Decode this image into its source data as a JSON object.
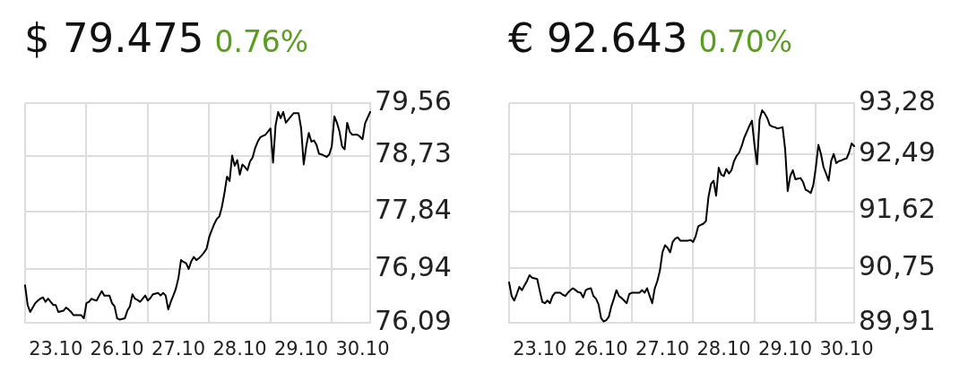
{
  "chart_data": [
    {
      "type": "line",
      "title": "$ 79.475",
      "subtitle": "0.76%",
      "categories": [
        null,
        null,
        null,
        null,
        null,
        null,
        null,
        null,
        null,
        null,
        null,
        null,
        "23.10",
        null,
        null,
        null,
        null,
        null,
        null,
        null,
        null,
        null,
        null,
        null,
        null,
        null,
        null,
        null,
        null,
        null,
        null,
        null,
        null,
        null,
        null,
        null,
        "26.10",
        null,
        null,
        null,
        null,
        null,
        null,
        null,
        null,
        null,
        null,
        null,
        null,
        null,
        null,
        null,
        null,
        null,
        null,
        null,
        null,
        null,
        null,
        null,
        "27.10",
        null,
        null,
        null,
        null,
        null,
        null,
        null,
        null,
        null,
        null,
        null,
        null,
        null,
        null,
        null,
        null,
        null,
        null,
        null,
        null,
        null,
        null,
        null,
        "28.10",
        null,
        null,
        null,
        null,
        null,
        null,
        null,
        null,
        null,
        null,
        null,
        null,
        null,
        null,
        null,
        null,
        null,
        null,
        null,
        null,
        null,
        null,
        null,
        "29.10",
        null,
        null,
        null,
        null,
        null,
        null,
        null,
        null,
        null,
        null,
        null,
        null,
        null,
        null,
        null,
        null,
        null,
        null,
        null,
        null,
        null,
        null,
        null,
        "30.10",
        null,
        null,
        null
      ],
      "values": [
        76.68,
        76.37,
        76.26,
        76.33,
        76.4,
        76.44,
        76.47,
        76.49,
        76.42,
        76.47,
        76.42,
        76.37,
        76.37,
        76.26,
        76.27,
        76.28,
        76.33,
        76.3,
        76.26,
        76.21,
        76.21,
        76.21,
        76.21,
        76.16,
        76.4,
        76.42,
        76.47,
        76.45,
        76.44,
        76.52,
        76.59,
        76.52,
        76.52,
        76.52,
        76.4,
        76.35,
        76.16,
        76.14,
        76.15,
        76.16,
        76.28,
        76.35,
        76.54,
        76.47,
        76.45,
        76.42,
        76.47,
        76.52,
        76.44,
        76.48,
        76.54,
        76.55,
        76.56,
        76.52,
        76.56,
        76.52,
        76.3,
        76.42,
        76.52,
        76.63,
        76.8,
        77.08,
        77.05,
        77.03,
        76.94,
        77.06,
        77.13,
        77.08,
        77.11,
        77.15,
        77.2,
        77.26,
        77.44,
        77.55,
        77.65,
        77.73,
        77.77,
        77.92,
        78.14,
        78.4,
        78.33,
        78.73,
        78.57,
        78.66,
        78.43,
        78.59,
        78.55,
        78.5,
        78.64,
        78.7,
        78.85,
        78.95,
        79.02,
        79.04,
        79.06,
        79.11,
        79.16,
        78.62,
        79.21,
        79.42,
        79.32,
        79.42,
        79.25,
        79.3,
        79.35,
        79.4,
        79.4,
        79.4,
        79.16,
        78.59,
        78.88,
        79.09,
        78.95,
        78.97,
        78.9,
        78.76,
        78.75,
        78.73,
        78.71,
        78.75,
        78.88,
        79.35,
        79.25,
        79.11,
        78.88,
        78.83,
        79.25,
        79.11,
        79.06,
        79.06,
        79.06,
        79.03,
        78.99,
        79.24,
        79.33,
        79.42
      ],
      "color": "#000000",
      "ylim": [
        76.09,
        79.56
      ],
      "yticks": [
        {
          "value": 76.09,
          "label": "76,09"
        },
        {
          "value": 76.94,
          "label": "76,94"
        },
        {
          "value": 77.84,
          "label": "77,84"
        },
        {
          "value": 78.73,
          "label": "78,73"
        },
        {
          "value": 79.56,
          "label": "79,56"
        }
      ],
      "grid": true
    },
    {
      "type": "line",
      "title": "€ 92.643",
      "subtitle": "0.70%",
      "categories": [
        null,
        null,
        null,
        null,
        null,
        null,
        null,
        null,
        null,
        null,
        null,
        null,
        "23.10",
        null,
        null,
        null,
        null,
        null,
        null,
        null,
        null,
        null,
        null,
        null,
        null,
        null,
        null,
        null,
        null,
        null,
        null,
        null,
        null,
        null,
        null,
        null,
        "26.10",
        null,
        null,
        null,
        null,
        null,
        null,
        null,
        null,
        null,
        null,
        null,
        null,
        null,
        null,
        null,
        null,
        null,
        null,
        null,
        null,
        null,
        null,
        null,
        "27.10",
        null,
        null,
        null,
        null,
        null,
        null,
        null,
        null,
        null,
        null,
        null,
        null,
        null,
        null,
        null,
        null,
        null,
        null,
        null,
        null,
        null,
        null,
        null,
        "28.10",
        null,
        null,
        null,
        null,
        null,
        null,
        null,
        null,
        null,
        null,
        null,
        null,
        null,
        null,
        null,
        null,
        null,
        null,
        null,
        null,
        null,
        null,
        null,
        "29.10",
        null,
        null,
        null,
        null,
        null,
        null,
        null,
        null,
        null,
        null,
        null,
        null,
        null,
        null,
        null,
        null,
        null,
        null,
        null,
        null,
        null,
        null,
        null,
        "30.10",
        null,
        null,
        null
      ],
      "values": [
        90.53,
        90.32,
        90.25,
        90.35,
        90.46,
        90.41,
        90.48,
        90.55,
        90.64,
        90.6,
        90.59,
        90.58,
        90.4,
        90.23,
        90.21,
        90.25,
        90.21,
        90.32,
        90.37,
        90.37,
        90.37,
        90.34,
        90.32,
        90.37,
        90.41,
        90.44,
        90.41,
        90.38,
        90.37,
        90.3,
        90.41,
        90.43,
        90.44,
        90.32,
        90.28,
        90.19,
        89.98,
        89.93,
        89.95,
        90.0,
        90.16,
        90.28,
        90.41,
        90.32,
        90.29,
        90.25,
        90.21,
        90.35,
        90.37,
        90.37,
        90.37,
        90.37,
        90.41,
        90.37,
        90.44,
        90.32,
        90.21,
        90.44,
        90.55,
        90.71,
        90.99,
        91.1,
        91.06,
        90.99,
        91.15,
        91.2,
        91.22,
        91.17,
        91.17,
        91.17,
        91.17,
        91.18,
        91.15,
        91.24,
        91.39,
        91.41,
        91.43,
        91.47,
        91.84,
        92.04,
        92.09,
        91.86,
        92.29,
        92.18,
        92.16,
        92.27,
        92.2,
        92.25,
        92.39,
        92.47,
        92.52,
        92.62,
        92.75,
        92.84,
        92.93,
        93.01,
        92.64,
        92.34,
        93.03,
        93.17,
        93.12,
        93.05,
        92.94,
        92.92,
        92.91,
        92.89,
        92.9,
        92.91,
        92.57,
        91.93,
        92.16,
        92.25,
        92.11,
        92.12,
        92.13,
        92.07,
        91.95,
        91.93,
        91.9,
        92.02,
        92.29,
        92.64,
        92.5,
        92.3,
        92.2,
        92.09,
        92.39,
        92.5,
        92.36,
        92.39,
        92.4,
        92.42,
        92.43,
        92.52,
        92.66,
        92.62
      ],
      "color": "#000000",
      "ylim": [
        89.91,
        93.28
      ],
      "yticks": [
        {
          "value": 89.91,
          "label": "89,91"
        },
        {
          "value": 90.75,
          "label": "90,75"
        },
        {
          "value": 91.62,
          "label": "91,62"
        },
        {
          "value": 92.49,
          "label": "92,49"
        },
        {
          "value": 93.28,
          "label": "93,28"
        }
      ],
      "grid": true
    }
  ]
}
